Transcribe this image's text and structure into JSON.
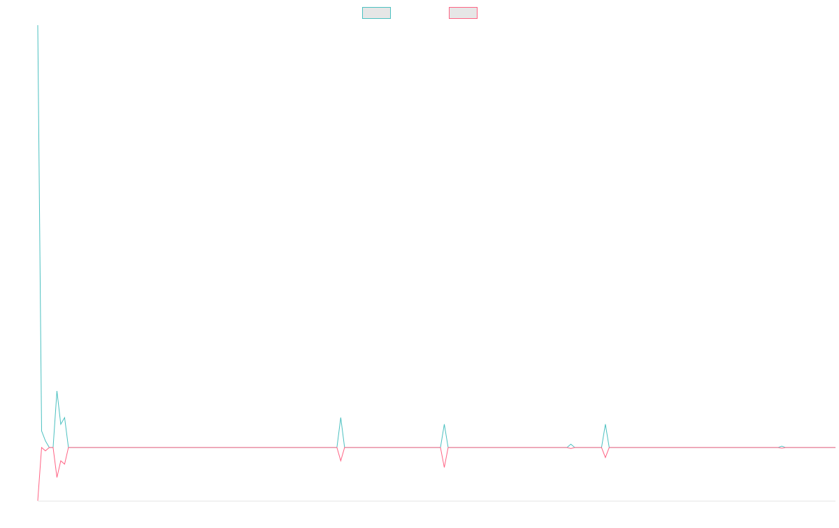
{
  "chart_data": {
    "type": "line",
    "title": "",
    "xlabel": "",
    "ylabel": "",
    "grid": false,
    "legend_position": "top-center",
    "ylim": [
      -16,
      127
    ],
    "series": [
      {
        "color": "#4bc0c0",
        "legend_fill": "#e6e6e6",
        "points": [
          [
            0,
            127
          ],
          [
            1,
            5
          ],
          [
            2,
            2
          ],
          [
            3,
            0
          ],
          [
            4,
            0
          ],
          [
            5,
            17
          ],
          [
            6,
            7
          ],
          [
            7,
            9
          ],
          [
            8,
            0
          ],
          [
            78,
            0
          ],
          [
            79,
            9
          ],
          [
            80,
            0
          ],
          [
            105,
            0
          ],
          [
            106,
            7
          ],
          [
            107,
            0
          ],
          [
            138,
            0
          ],
          [
            139,
            1
          ],
          [
            140,
            0
          ],
          [
            147,
            0
          ],
          [
            148,
            7
          ],
          [
            149,
            0
          ],
          [
            193,
            0
          ],
          [
            194,
            0.4
          ],
          [
            195,
            0
          ],
          [
            208,
            0
          ]
        ]
      },
      {
        "color": "#ff6384",
        "legend_fill": "#e6e6e6",
        "points": [
          [
            0,
            -16
          ],
          [
            1,
            0
          ],
          [
            2,
            -1
          ],
          [
            3,
            0
          ],
          [
            4,
            0
          ],
          [
            5,
            -9
          ],
          [
            6,
            -4
          ],
          [
            7,
            -5
          ],
          [
            8,
            0
          ],
          [
            78,
            0
          ],
          [
            79,
            -4
          ],
          [
            80,
            0
          ],
          [
            105,
            0
          ],
          [
            106,
            -6
          ],
          [
            107,
            0
          ],
          [
            138,
            0
          ],
          [
            139,
            -0.3
          ],
          [
            140,
            0
          ],
          [
            147,
            0
          ],
          [
            148,
            -3
          ],
          [
            149,
            0
          ],
          [
            193,
            0
          ],
          [
            194,
            -0.2
          ],
          [
            195,
            0
          ],
          [
            208,
            0
          ]
        ]
      }
    ]
  }
}
